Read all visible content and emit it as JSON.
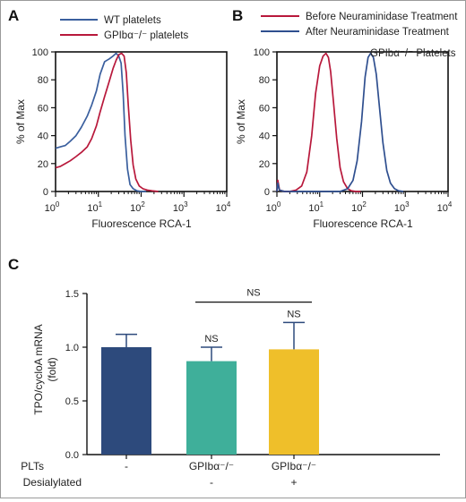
{
  "panels": {
    "a_letter": "A",
    "b_letter": "B",
    "c_letter": "C"
  },
  "chart_data": [
    {
      "id": "A",
      "type": "line",
      "xscale": "log",
      "xlim": [
        1,
        10000
      ],
      "ylim": [
        0,
        100
      ],
      "xticks": [
        1,
        10,
        100,
        1000,
        10000
      ],
      "xtick_labels": [
        [
          "10",
          "0"
        ],
        [
          "10",
          "1"
        ],
        [
          "10",
          "2"
        ],
        [
          "10",
          "3"
        ],
        [
          "10",
          "4"
        ]
      ],
      "yticks": [
        0,
        20,
        40,
        60,
        80,
        100
      ],
      "xlabel": "Fluorescence RCA-1",
      "ylabel": "% of Max",
      "legend": "top-left",
      "series": [
        {
          "name": "WT platelets",
          "color": "#3a5f9e",
          "x": [
            1,
            1.3,
            1.7,
            2.2,
            3,
            4,
            5.5,
            7,
            9,
            11,
            14,
            18,
            22,
            26,
            30,
            34,
            38,
            42,
            48,
            55,
            65,
            80,
            100,
            130
          ],
          "y": [
            31,
            32,
            33,
            36,
            40,
            46,
            54,
            62,
            72,
            84,
            93,
            95,
            97,
            99,
            97,
            92,
            70,
            40,
            16,
            5,
            2,
            0.5,
            0,
            0
          ]
        },
        {
          "name": "GPIbα⁻/⁻ platelets",
          "color": "#b8183b",
          "x": [
            1,
            1.3,
            1.7,
            2.2,
            3,
            4,
            5.5,
            7,
            9,
            11,
            14,
            18,
            22,
            26,
            30,
            35,
            40,
            45,
            50,
            57,
            65,
            75,
            90,
            110,
            140,
            180,
            250
          ],
          "y": [
            17,
            18,
            20,
            22,
            25,
            28,
            32,
            38,
            47,
            57,
            68,
            79,
            88,
            94,
            98,
            99,
            97,
            85,
            62,
            37,
            19,
            9,
            4,
            2,
            1,
            0.5,
            0
          ]
        }
      ]
    },
    {
      "id": "B",
      "type": "line",
      "xscale": "log",
      "xlim": [
        1,
        10000
      ],
      "ylim": [
        0,
        100
      ],
      "xticks": [
        1,
        10,
        100,
        1000,
        10000
      ],
      "xtick_labels": [
        [
          "10",
          "0"
        ],
        [
          "10",
          "1"
        ],
        [
          "10",
          "2"
        ],
        [
          "10",
          "3"
        ],
        [
          "10",
          "4"
        ]
      ],
      "yticks": [
        0,
        20,
        40,
        60,
        80,
        100
      ],
      "xlabel": "Fluorescence RCA-1",
      "ylabel": "% of Max",
      "legend": "top-right",
      "annotation": "GPIbα⁻/⁻ Platelets",
      "series": [
        {
          "name": "Before Neuraminidase Treatment",
          "color": "#b8183b",
          "x": [
            1,
            1.05,
            1.15,
            1.5,
            2,
            2.8,
            3.8,
            5,
            6.5,
            8,
            10,
            12,
            14,
            16,
            18,
            21,
            25,
            30,
            36,
            45,
            55,
            70,
            90
          ],
          "y": [
            0,
            8,
            1,
            0,
            0,
            1,
            4,
            14,
            40,
            70,
            90,
            97,
            99,
            96,
            86,
            64,
            38,
            17,
            7,
            2,
            0.5,
            0,
            0
          ]
        },
        {
          "name": "After Neuraminidase Treatment",
          "color": "#2f4f8f",
          "x": [
            1,
            1.05,
            1.15,
            1.5,
            2.5,
            4,
            6,
            10,
            20,
            30,
            45,
            60,
            75,
            95,
            115,
            135,
            155,
            180,
            210,
            250,
            300,
            370,
            450,
            560,
            700,
            900
          ],
          "y": [
            0,
            6,
            1,
            0,
            0,
            0,
            0,
            0,
            0,
            0,
            2,
            8,
            22,
            50,
            82,
            96,
            99,
            96,
            84,
            60,
            35,
            15,
            6,
            2,
            0.5,
            0
          ]
        }
      ]
    },
    {
      "id": "C",
      "type": "bar",
      "categories": [
        "1",
        "2",
        "3"
      ],
      "row_labels": {
        "plts": "PLTs",
        "desialylated": "Desialylated"
      },
      "plts_values": [
        "-",
        "GPIbα⁻/⁻",
        "GPIbα⁻/⁻"
      ],
      "desialylated_values": [
        "",
        "-",
        "+"
      ],
      "values": [
        1.0,
        0.87,
        0.98
      ],
      "errors": [
        0.12,
        0.13,
        0.25
      ],
      "colors": [
        "#2d4a7c",
        "#3faf9a",
        "#efbf2a"
      ],
      "ylabel": "TPO/cycloA mRNA (fold)",
      "ylabel_lines": [
        "TPO/cycloA mRNA",
        "(fold)"
      ],
      "ylim": [
        0,
        1.5
      ],
      "yticks": [
        0,
        0.5,
        1.0,
        1.5
      ],
      "ytick_labels": [
        "0.0",
        "0.5",
        "1.0",
        "1.5"
      ],
      "significance": [
        {
          "label": "NS",
          "type": "bar",
          "index": 1
        },
        {
          "label": "NS",
          "type": "bar",
          "index": 2
        },
        {
          "label": "NS",
          "type": "bracket",
          "from": 1,
          "to": 2
        }
      ]
    }
  ]
}
